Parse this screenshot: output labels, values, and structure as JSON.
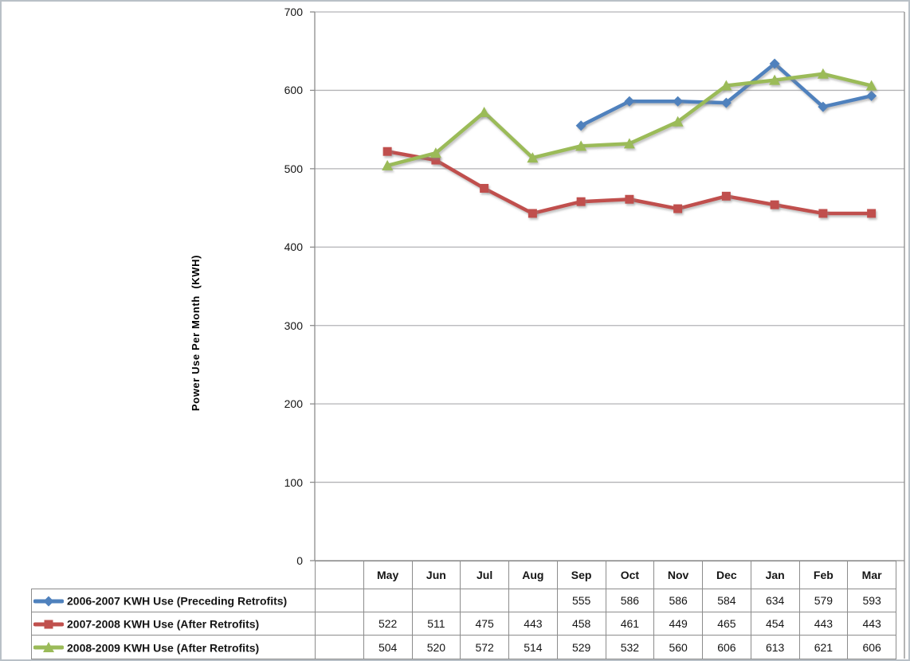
{
  "chart_data": {
    "type": "line",
    "ylabel": "Power Use Per Month  (KWH)",
    "xlabel": "",
    "categories": [
      "May",
      "Jun",
      "Jul",
      "Aug",
      "Sep",
      "Oct",
      "Nov",
      "Dec",
      "Jan",
      "Feb",
      "Mar"
    ],
    "series": [
      {
        "name": "2006-2007 KWH Use (Preceding Retrofits)",
        "color": "#4F81BD",
        "marker": "diamond",
        "values": [
          null,
          null,
          null,
          null,
          555,
          586,
          586,
          584,
          634,
          579,
          593
        ]
      },
      {
        "name": "2007-2008 KWH Use (After Retrofits)",
        "color": "#C0504D",
        "marker": "square",
        "values": [
          522,
          511,
          475,
          443,
          458,
          461,
          449,
          465,
          454,
          443,
          443
        ]
      },
      {
        "name": "2008-2009 KWH Use (After Retrofits)",
        "color": "#9BBB59",
        "marker": "triangle",
        "values": [
          504,
          520,
          572,
          514,
          529,
          532,
          560,
          606,
          613,
          621,
          606
        ]
      }
    ],
    "ylim": [
      0,
      700
    ],
    "yticks": [
      0,
      100,
      200,
      300,
      400,
      500,
      600,
      700
    ],
    "grid": "horizontal-major",
    "legend_position": "left-of-data-table",
    "data_table_shown": true,
    "leading_blank_category_slot": true,
    "colors": {
      "gridline": "#b3b3b6",
      "axis": "#8c8c8c",
      "table_border": "#8c8c8c",
      "text": "#151515"
    }
  }
}
